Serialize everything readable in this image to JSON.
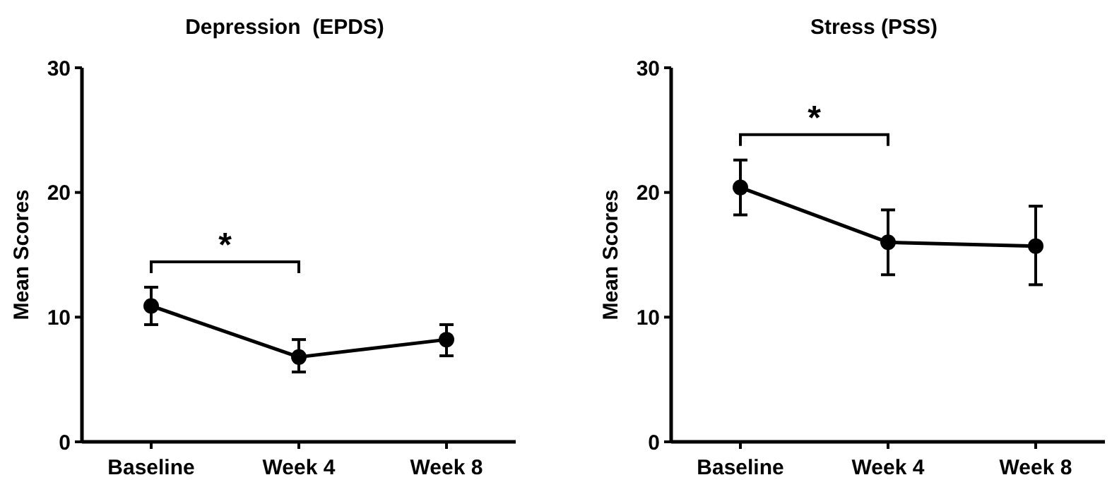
{
  "chart_data": [
    {
      "type": "line",
      "title": "Depression  (EPDS)",
      "ylabel": "Mean Scores",
      "categories": [
        "Baseline",
        "Week 4",
        "Week 8"
      ],
      "series": [
        {
          "color": "#000000",
          "values": [
            10.9,
            6.8,
            8.2
          ],
          "errors": [
            [
              9.4,
              12.4
            ],
            [
              5.6,
              8.2
            ],
            [
              6.9,
              9.4
            ]
          ]
        }
      ],
      "ylim": [
        0,
        30
      ],
      "yticks": [
        0,
        10,
        20,
        30
      ],
      "marker": "circle",
      "grid": false,
      "annotations": [
        "*"
      ]
    },
    {
      "type": "line",
      "title": "Stress (PSS)",
      "ylabel": "Mean Scores",
      "categories": [
        "Baseline",
        "Week 4",
        "Week 8"
      ],
      "series": [
        {
          "color": "#000000",
          "values": [
            20.4,
            16.0,
            15.7
          ],
          "errors": [
            [
              18.2,
              22.6
            ],
            [
              13.4,
              18.6
            ],
            [
              12.6,
              18.9
            ]
          ]
        }
      ],
      "ylim": [
        0,
        30
      ],
      "yticks": [
        0,
        10,
        20,
        30
      ],
      "marker": "circle",
      "grid": false,
      "annotations": [
        "*"
      ]
    }
  ]
}
